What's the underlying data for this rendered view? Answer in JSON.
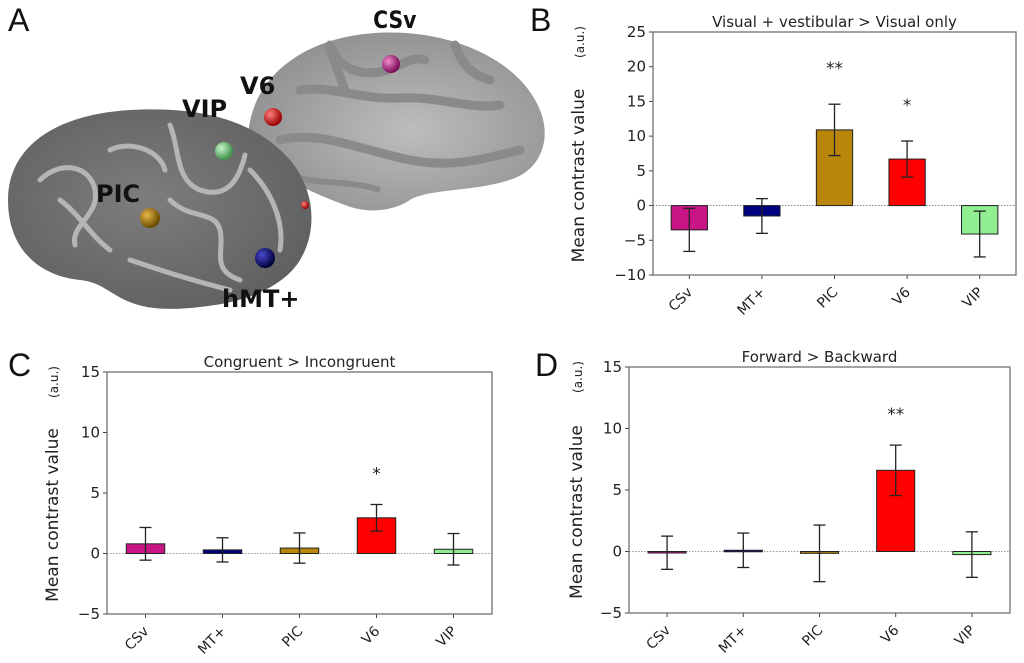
{
  "panels": {
    "A": "A",
    "B": "B",
    "C": "C",
    "D": "D"
  },
  "brain": {
    "labels": [
      "CSv",
      "V6",
      "VIP",
      "PIC",
      "hMT+"
    ],
    "marker_colors": {
      "CSv": "#c2188f",
      "V6": "#ee1111",
      "VIP": "#7fd88a",
      "PIC": "#b8860b",
      "hMT+": "#00007a"
    }
  },
  "chart_data": [
    {
      "panel": "B",
      "type": "bar",
      "title": "Visual + vestibular > Visual only",
      "xlabel": "",
      "ylabel": "Mean contrast value",
      "ylabel_unit": "(a.u.)",
      "categories": [
        "CSv",
        "MT+",
        "PIC",
        "V6",
        "VIP"
      ],
      "values": [
        -3.5,
        -1.5,
        10.9,
        6.7,
        -4.1
      ],
      "errors": [
        3.1,
        2.5,
        3.7,
        2.6,
        3.3
      ],
      "significance": [
        "",
        "",
        "**",
        "*",
        ""
      ],
      "colors": [
        "#c71585",
        "#000080",
        "#b8860b",
        "#ff0000",
        "#90ee90"
      ],
      "ylim": [
        -10,
        25
      ],
      "yticks": [
        -10,
        -5,
        0,
        5,
        10,
        15,
        20,
        25
      ],
      "zero_line": true,
      "grid": false
    },
    {
      "panel": "C",
      "type": "bar",
      "title": "Congruent > Incongruent",
      "xlabel": "",
      "ylabel": "Mean contrast value",
      "ylabel_unit": "(a.u.)",
      "categories": [
        "CSv",
        "MT+",
        "PIC",
        "V6",
        "VIP"
      ],
      "values": [
        0.8,
        0.3,
        0.45,
        2.95,
        0.35
      ],
      "errors": [
        1.35,
        1.0,
        1.25,
        1.1,
        1.3
      ],
      "significance": [
        "",
        "",
        "",
        "*",
        ""
      ],
      "colors": [
        "#c71585",
        "#000080",
        "#b8860b",
        "#ff0000",
        "#90ee90"
      ],
      "ylim": [
        -5,
        15
      ],
      "yticks": [
        -5,
        0,
        5,
        10,
        15
      ],
      "zero_line": true,
      "grid": false
    },
    {
      "panel": "D",
      "type": "bar",
      "title": "Forward > Backward",
      "xlabel": "",
      "ylabel": "Mean contrast value",
      "ylabel_unit": "(a.u.)",
      "categories": [
        "CSv",
        "MT+",
        "PIC",
        "V6",
        "VIP"
      ],
      "values": [
        -0.1,
        0.1,
        -0.15,
        6.6,
        -0.25
      ],
      "errors": [
        1.35,
        1.4,
        2.3,
        2.05,
        1.85
      ],
      "significance": [
        "",
        "",
        "",
        "**",
        ""
      ],
      "colors": [
        "#c71585",
        "#000080",
        "#b8860b",
        "#ff0000",
        "#90ee90"
      ],
      "ylim": [
        -5,
        15
      ],
      "yticks": [
        -5,
        0,
        5,
        10,
        15
      ],
      "zero_line": true,
      "grid": false
    }
  ]
}
